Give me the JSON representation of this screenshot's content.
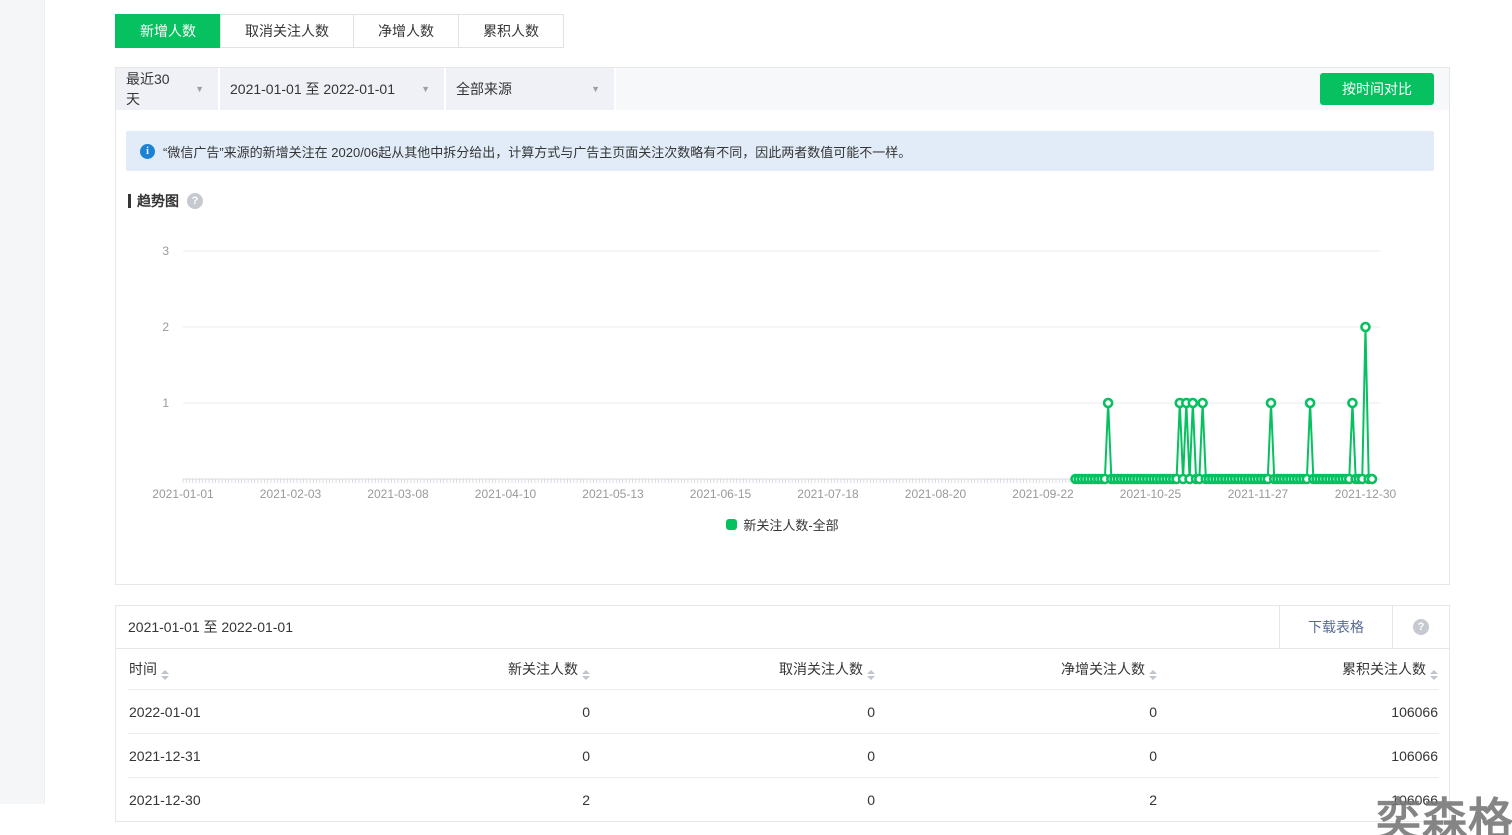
{
  "page": {
    "watermark": "奕森格"
  },
  "tabs": [
    {
      "label": "新增人数",
      "active": true
    },
    {
      "label": "取消关注人数",
      "active": false
    },
    {
      "label": "净增人数",
      "active": false
    },
    {
      "label": "累积人数",
      "active": false
    }
  ],
  "filters": {
    "range_select": "最近30天",
    "date_range": "2021-01-01 至 2022-01-01",
    "source_select": "全部来源",
    "compare_button": "按时间对比"
  },
  "notice": "“微信广告”来源的新增关注在 2020/06起从其他中拆分给出，计算方式与广告主页面关注次数略有不同，因此两者数值可能不一样。",
  "chart_section": {
    "title": "趋势图"
  },
  "chart_data": {
    "type": "line",
    "title": "趋势图",
    "series_name": "新关注人数-全部",
    "color": "#07C160",
    "x_start": "2021-01-01",
    "x_end": "2022-01-01",
    "x_tick_labels": [
      "2021-01-01",
      "2021-02-03",
      "2021-03-08",
      "2021-04-10",
      "2021-05-13",
      "2021-06-15",
      "2021-07-18",
      "2021-08-20",
      "2021-09-22",
      "2021-10-25",
      "2021-11-27",
      "2021-12-30"
    ],
    "ylim": [
      0,
      3
    ],
    "y_ticks": [
      1,
      2,
      3
    ],
    "grid": true,
    "legend_position": "bottom",
    "data_start": "2021-10-02",
    "data_end": "2022-01-01",
    "baseline_value": 0,
    "nonzero_points": [
      {
        "date": "2021-10-12",
        "value": 1
      },
      {
        "date": "2021-11-03",
        "value": 1
      },
      {
        "date": "2021-11-05",
        "value": 1
      },
      {
        "date": "2021-11-07",
        "value": 1
      },
      {
        "date": "2021-11-10",
        "value": 1
      },
      {
        "date": "2021-12-01",
        "value": 1
      },
      {
        "date": "2021-12-13",
        "value": 1
      },
      {
        "date": "2021-12-26",
        "value": 1
      },
      {
        "date": "2021-12-30",
        "value": 2
      }
    ]
  },
  "table": {
    "title": "2021-01-01 至 2022-01-01",
    "download_label": "下载表格",
    "columns": [
      "时间",
      "新关注人数",
      "取消关注人数",
      "净增关注人数",
      "累积关注人数"
    ],
    "rows": [
      [
        "2022-01-01",
        "0",
        "0",
        "0",
        "106066"
      ],
      [
        "2021-12-31",
        "0",
        "0",
        "0",
        "106066"
      ],
      [
        "2021-12-30",
        "2",
        "0",
        "2",
        "106066"
      ]
    ]
  },
  "colors": {
    "accent_green": "#07C160",
    "link_blue": "#576b95",
    "notice_bg": "#e2ecf8",
    "info_blue": "#1e82d2",
    "card_border": "#e7e7eb",
    "axis_text": "#999999"
  }
}
